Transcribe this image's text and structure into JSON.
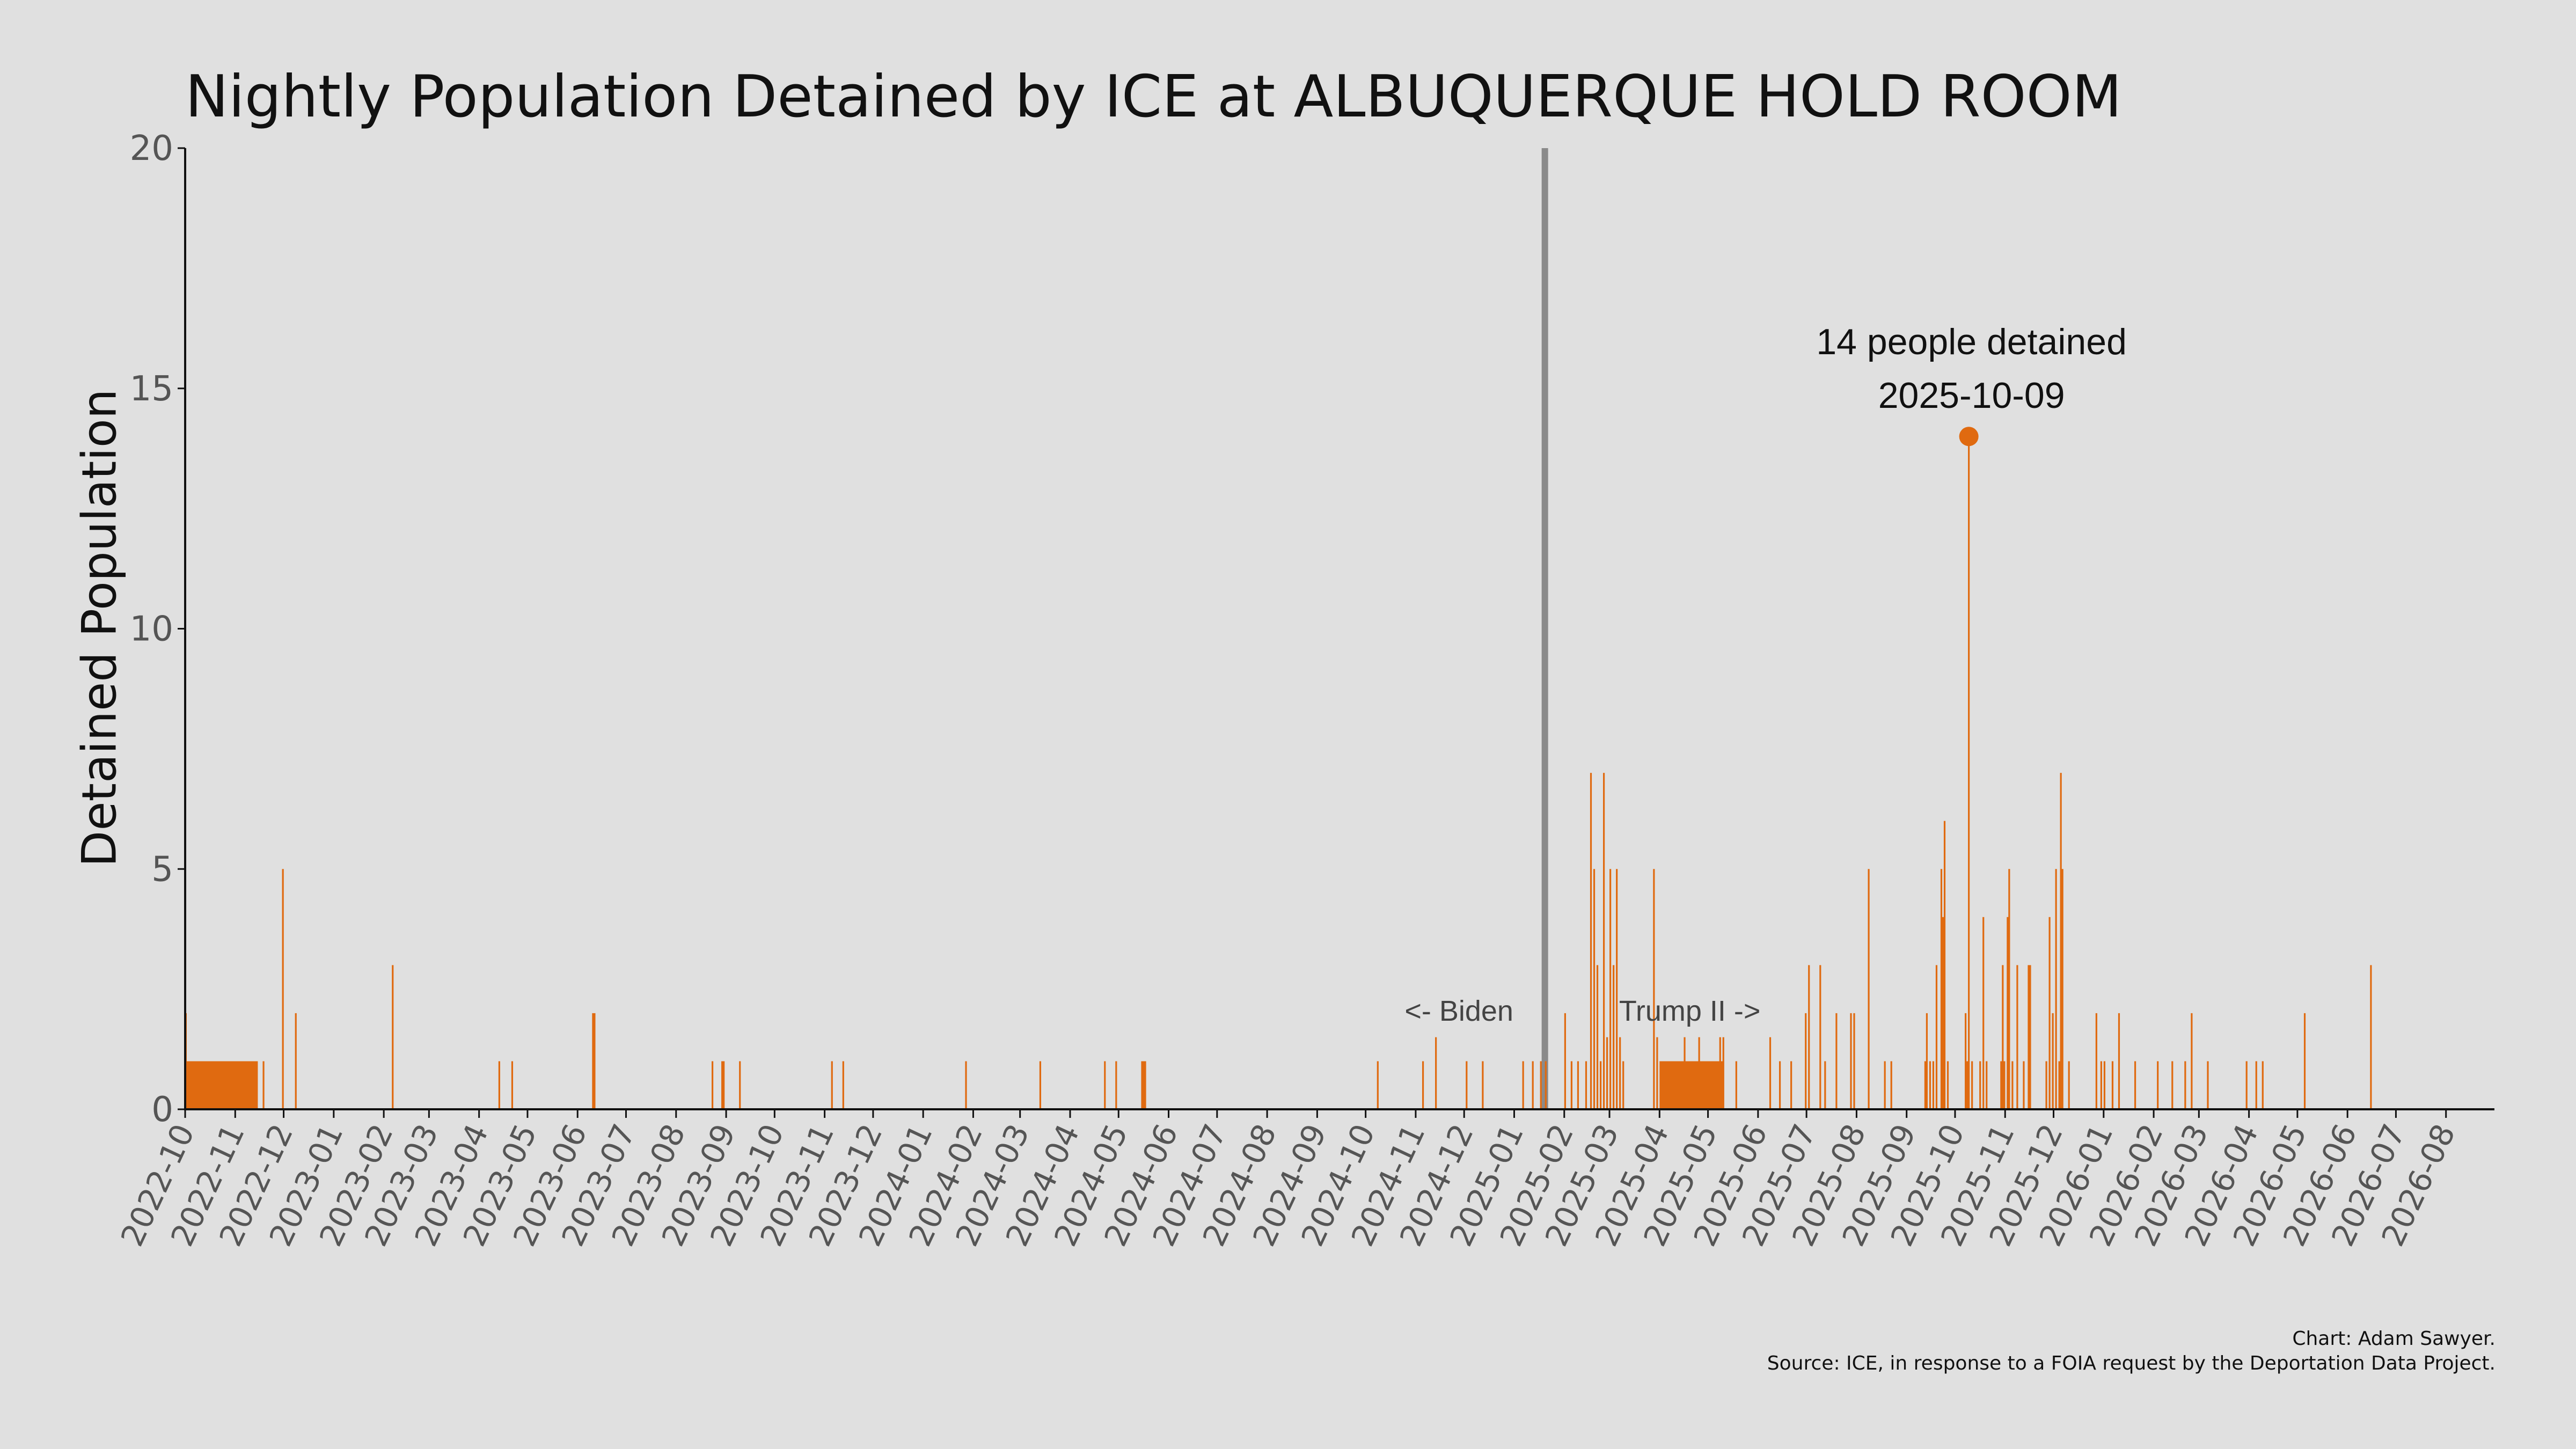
{
  "chart_data": {
    "type": "bar",
    "title": "Nightly Population Detained by ICE at ALBUQUERQUE HOLD ROOM",
    "ylabel": "Detained Population",
    "xlabel": "",
    "ylim": [
      0,
      20
    ],
    "yticks": [
      0,
      5,
      10,
      15,
      20
    ],
    "xlim": [
      "2022-10-01",
      "2026-08-31"
    ],
    "xticks": [
      "2022-10",
      "2022-11",
      "2022-12",
      "2023-01",
      "2023-02",
      "2023-03",
      "2023-04",
      "2023-05",
      "2023-06",
      "2023-07",
      "2023-08",
      "2023-09",
      "2023-10",
      "2023-11",
      "2023-12",
      "2024-01",
      "2024-02",
      "2024-03",
      "2024-04",
      "2024-05",
      "2024-06",
      "2024-07",
      "2024-08",
      "2024-09",
      "2024-10",
      "2024-11",
      "2024-12",
      "2025-01",
      "2025-02",
      "2025-03",
      "2025-04",
      "2025-05",
      "2025-06",
      "2025-07",
      "2025-08",
      "2025-09",
      "2025-10",
      "2025-11",
      "2025-12",
      "2026-01",
      "2026-02",
      "2026-03",
      "2026-04",
      "2026-05",
      "2026-06",
      "2026-07",
      "2026-08"
    ],
    "bar_color": "#e06a10",
    "grid": false,
    "spans": [
      {
        "start": "2022-10-01",
        "end": "2022-10-01",
        "value": 2
      },
      {
        "start": "2022-10-02",
        "end": "2022-11-14",
        "value": 1
      },
      {
        "start": "2025-04-01",
        "end": "2025-05-10",
        "value": 1
      }
    ],
    "bars": [
      [
        "2022-11-18",
        1
      ],
      [
        "2022-11-30",
        5
      ],
      [
        "2022-12-08",
        2
      ],
      [
        "2023-02-06",
        3
      ],
      [
        "2023-04-13",
        1
      ],
      [
        "2023-04-21",
        1
      ],
      [
        "2023-06-10",
        2
      ],
      [
        "2023-06-11",
        2
      ],
      [
        "2023-08-23",
        1
      ],
      [
        "2023-08-29",
        1
      ],
      [
        "2023-08-30",
        1
      ],
      [
        "2023-09-09",
        1
      ],
      [
        "2023-11-05",
        1
      ],
      [
        "2023-11-12",
        1
      ],
      [
        "2024-01-27",
        1
      ],
      [
        "2024-03-13",
        1
      ],
      [
        "2024-04-22",
        1
      ],
      [
        "2024-04-29",
        1
      ],
      [
        "2024-05-15",
        1
      ],
      [
        "2024-05-16",
        1
      ],
      [
        "2024-05-17",
        1
      ],
      [
        "2024-10-08",
        1
      ],
      [
        "2024-11-05",
        1
      ],
      [
        "2024-11-13",
        1.5
      ],
      [
        "2024-12-02",
        1
      ],
      [
        "2024-12-12",
        1
      ],
      [
        "2025-01-06",
        1
      ],
      [
        "2025-01-12",
        1
      ],
      [
        "2025-01-17",
        1
      ],
      [
        "2025-01-20",
        1
      ],
      [
        "2025-02-01",
        2
      ],
      [
        "2025-02-05",
        1
      ],
      [
        "2025-02-09",
        1
      ],
      [
        "2025-02-14",
        1
      ],
      [
        "2025-02-17",
        7
      ],
      [
        "2025-02-19",
        5
      ],
      [
        "2025-02-21",
        3
      ],
      [
        "2025-02-23",
        1
      ],
      [
        "2025-02-25",
        7
      ],
      [
        "2025-02-27",
        1.5
      ],
      [
        "2025-03-01",
        5
      ],
      [
        "2025-03-03",
        3
      ],
      [
        "2025-03-05",
        5
      ],
      [
        "2025-03-07",
        1.5
      ],
      [
        "2025-03-09",
        1
      ],
      [
        "2025-03-28",
        5
      ],
      [
        "2025-03-30",
        1.5
      ],
      [
        "2025-04-16",
        1.5
      ],
      [
        "2025-04-25",
        1.5
      ],
      [
        "2025-05-08",
        1.5
      ],
      [
        "2025-05-10",
        1.5
      ],
      [
        "2025-05-18",
        1
      ],
      [
        "2025-06-08",
        1.5
      ],
      [
        "2025-06-14",
        1
      ],
      [
        "2025-06-21",
        1
      ],
      [
        "2025-06-30",
        2
      ],
      [
        "2025-07-02",
        3
      ],
      [
        "2025-07-09",
        3
      ],
      [
        "2025-07-12",
        1
      ],
      [
        "2025-07-19",
        2
      ],
      [
        "2025-07-28",
        2
      ],
      [
        "2025-07-30",
        2
      ],
      [
        "2025-08-08",
        5
      ],
      [
        "2025-08-18",
        1
      ],
      [
        "2025-08-22",
        1
      ],
      [
        "2025-09-12",
        1
      ],
      [
        "2025-09-13",
        2
      ],
      [
        "2025-09-15",
        1
      ],
      [
        "2025-09-17",
        1
      ],
      [
        "2025-09-19",
        3
      ],
      [
        "2025-09-22",
        5
      ],
      [
        "2025-09-23",
        4
      ],
      [
        "2025-09-24",
        6
      ],
      [
        "2025-09-26",
        1
      ],
      [
        "2025-10-07",
        2
      ],
      [
        "2025-10-08",
        1
      ],
      [
        "2025-10-09",
        14
      ],
      [
        "2025-10-11",
        1
      ],
      [
        "2025-10-16",
        1
      ],
      [
        "2025-10-18",
        4
      ],
      [
        "2025-10-20",
        1
      ],
      [
        "2025-10-29",
        1
      ],
      [
        "2025-10-30",
        3
      ],
      [
        "2025-10-31",
        1
      ],
      [
        "2025-11-02",
        4
      ],
      [
        "2025-11-03",
        5
      ],
      [
        "2025-11-05",
        1
      ],
      [
        "2025-11-08",
        3
      ],
      [
        "2025-11-12",
        1
      ],
      [
        "2025-11-15",
        3
      ],
      [
        "2025-11-16",
        3
      ],
      [
        "2025-11-26",
        1
      ],
      [
        "2025-11-28",
        4
      ],
      [
        "2025-11-30",
        2
      ],
      [
        "2025-12-02",
        5
      ],
      [
        "2025-12-04",
        1
      ],
      [
        "2025-12-05",
        7
      ],
      [
        "2025-12-06",
        5
      ],
      [
        "2025-12-10",
        1
      ],
      [
        "2025-12-27",
        2
      ],
      [
        "2025-12-30",
        1
      ],
      [
        "2026-01-01",
        1
      ],
      [
        "2026-01-06",
        1
      ],
      [
        "2026-01-10",
        2
      ],
      [
        "2026-01-20",
        1
      ],
      [
        "2026-02-03",
        1
      ],
      [
        "2026-02-12",
        1
      ],
      [
        "2026-02-20",
        1
      ],
      [
        "2026-02-24",
        2
      ],
      [
        "2026-03-06",
        1
      ],
      [
        "2026-03-30",
        1
      ],
      [
        "2026-04-05",
        1
      ],
      [
        "2026-04-09",
        1
      ],
      [
        "2026-05-05",
        2
      ],
      [
        "2026-06-15",
        3
      ]
    ],
    "divider_date": "2025-01-20",
    "era_labels": {
      "left": "<- Biden",
      "right": "Trump II ->"
    },
    "peak": {
      "date": "2025-10-09",
      "value": 14,
      "label_line1": "14 people detained",
      "label_line2": "2025-10-09"
    }
  },
  "credit": {
    "line1": "Chart: Adam Sawyer.",
    "line2": "Source: ICE, in response to a FOIA request by the Deportation Data Project."
  }
}
